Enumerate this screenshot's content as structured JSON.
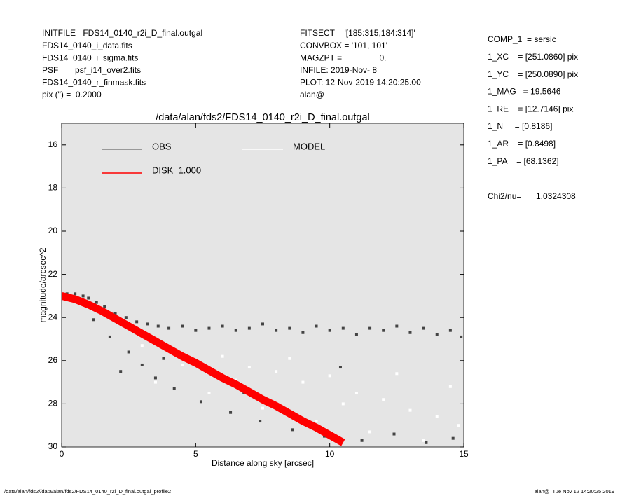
{
  "chart_data": {
    "type": "scatter",
    "title": "/data/alan/fds2/FDS14_0140_r2i_D_final.outgal",
    "x_label": "Distance along sky [arcsec]",
    "y_label": "magnitude/arcsec^2",
    "xlim": [
      0,
      15
    ],
    "xticks": [
      0,
      5,
      10,
      15
    ],
    "ylim": [
      15,
      30
    ],
    "y_inverted": true,
    "yticks": [
      16,
      18,
      20,
      22,
      24,
      26,
      28,
      30
    ],
    "background": "#e5e5e5",
    "series": [
      {
        "name": "OBS",
        "color": "#444444",
        "legend_color": "#808080",
        "mode": "points",
        "x": [
          0.2,
          0.5,
          0.8,
          1.0,
          1.3,
          1.6,
          2.0,
          2.4,
          2.8,
          3.2,
          3.6,
          4.0,
          4.5,
          5.0,
          5.5,
          6.0,
          6.5,
          7.0,
          7.5,
          8.0,
          8.5,
          9.0,
          9.5,
          10.0,
          10.5,
          11.0,
          11.5,
          12.0,
          12.5,
          13.0,
          13.5,
          14.0,
          14.5,
          14.9,
          1.2,
          1.8,
          2.5,
          3.0,
          3.5,
          4.2,
          5.2,
          6.3,
          7.4,
          8.6,
          9.8,
          11.2,
          12.4,
          13.6,
          14.6,
          2.2,
          3.8,
          6.8,
          10.4
        ],
        "values": [
          22.9,
          22.9,
          23.0,
          23.1,
          23.3,
          23.5,
          23.8,
          24.0,
          24.2,
          24.3,
          24.4,
          24.5,
          24.4,
          24.6,
          24.5,
          24.4,
          24.6,
          24.5,
          24.3,
          24.6,
          24.5,
          24.7,
          24.4,
          24.6,
          24.5,
          24.8,
          24.5,
          24.6,
          24.4,
          24.7,
          24.5,
          24.8,
          24.6,
          24.9,
          24.1,
          24.9,
          25.6,
          26.2,
          26.8,
          27.3,
          27.9,
          28.4,
          28.8,
          29.2,
          29.5,
          29.7,
          29.4,
          29.8,
          29.6,
          26.5,
          25.9,
          27.5,
          26.3
        ]
      },
      {
        "name": "MODEL",
        "color": "#ffffff",
        "legend_color": "#ffffff",
        "mode": "points",
        "x": [
          0.3,
          1.0,
          2.0,
          3.0,
          4.0,
          5.0,
          6.0,
          7.0,
          8.0,
          9.0,
          10.0,
          11.0,
          12.0,
          13.0,
          14.0,
          14.8,
          3.5,
          5.5,
          7.5,
          9.5,
          11.5,
          13.5,
          4.5,
          6.5,
          8.5,
          10.5,
          12.5,
          14.5
        ],
        "values": [
          23.0,
          23.3,
          24.0,
          25.3,
          25.5,
          26.0,
          25.8,
          26.3,
          26.5,
          27.0,
          26.7,
          27.5,
          27.8,
          28.3,
          28.6,
          29.0,
          27.0,
          27.5,
          28.2,
          28.8,
          29.3,
          29.7,
          26.2,
          26.9,
          25.9,
          28.0,
          26.6,
          27.2
        ]
      },
      {
        "name": "DISK  1.000",
        "color": "#ff0000",
        "legend_color": "#ff0000",
        "mode": "band",
        "x": [
          0,
          0.5,
          1,
          1.5,
          2,
          2.5,
          3,
          3.5,
          4,
          4.5,
          5,
          5.5,
          6,
          6.5,
          7,
          7.5,
          8,
          8.5,
          9,
          9.5,
          10,
          10.5
        ],
        "values": [
          23.0,
          23.15,
          23.4,
          23.7,
          24.05,
          24.4,
          24.75,
          25.1,
          25.45,
          25.8,
          26.1,
          26.45,
          26.8,
          27.1,
          27.45,
          27.8,
          28.1,
          28.45,
          28.8,
          29.1,
          29.45,
          29.8
        ]
      }
    ]
  },
  "header": {
    "left": [
      "INITFILE= FDS14_0140_r2i_D_final.outgal",
      "FDS14_0140_i_data.fits",
      "FDS14_0140_i_sigma.fits",
      "PSF    = psf_i14_over2.fits",
      "FDS14_0140_r_finmask.fits",
      "pix (\") =  0.2000"
    ],
    "middle": [
      "FITSECT = '[185:315,184:314]'",
      "CONVBOX = '101, 101'",
      "MAGZPT =                0.",
      "INFILE: 2019-Nov- 8",
      "PLOT: 12-Nov-2019 14:20:25.00",
      "alan@"
    ],
    "right": [
      "COMP_1  = sersic",
      "1_XC    = [251.0860] pix",
      "1_YC    = [250.0890] pix",
      "1_MAG   = 19.5646",
      "1_RE    = [12.7146] pix",
      "1_N     = [0.8186]",
      "1_AR    = [0.8498]",
      "1_PA    = [68.1362]"
    ],
    "chi2_label": "Chi2/nu=",
    "chi2_value": "1.0324308"
  },
  "footer": {
    "left": "/data/alan/fds2//data/alan/fds2/FDS14_0140_r2i_D_final.outgal_profile2",
    "right": "alan@  Tue Nov 12 14:20:25 2019"
  }
}
